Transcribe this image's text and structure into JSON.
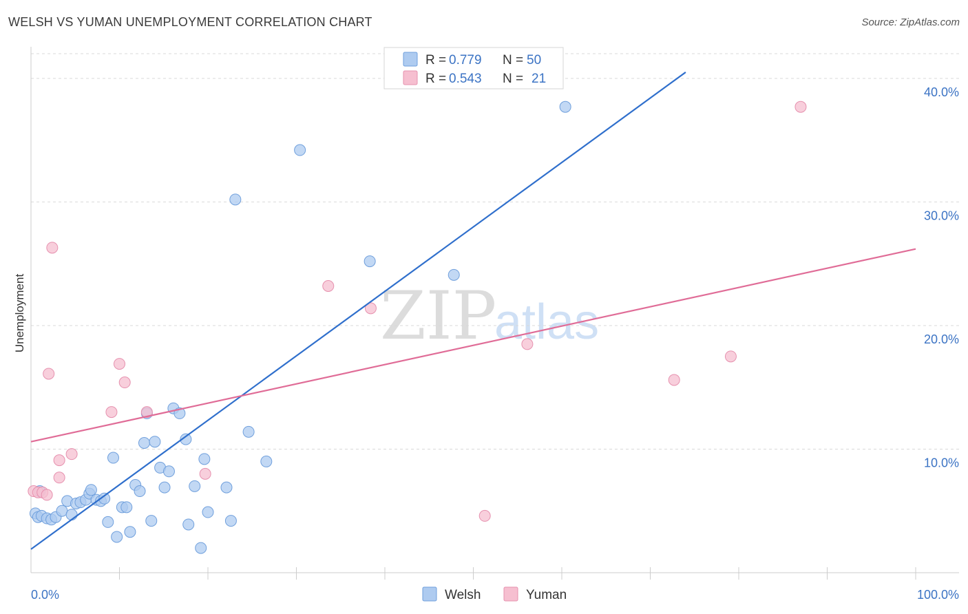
{
  "header": {
    "title": "WELSH VS YUMAN UNEMPLOYMENT CORRELATION CHART",
    "source": "Source: ZipAtlas.com"
  },
  "watermark": {
    "zip": "ZIP",
    "atlas": "atlas"
  },
  "legend_top": {
    "entries": [
      {
        "r_label": "R = ",
        "r_value": "0.779",
        "n_label": "N = ",
        "n_value": "50",
        "color": "#aecbf0"
      },
      {
        "r_label": "R = ",
        "r_value": "0.543",
        "n_label": "N = ",
        "n_value": "21",
        "color": "#f6bfd0"
      }
    ]
  },
  "legend_bottom": {
    "items": [
      "Welsh",
      "Yuman"
    ]
  },
  "colors": {
    "welsh_fill": "#aecbf0",
    "welsh_stroke": "#6f9fdc",
    "welsh_line": "#2f6fcc",
    "yuman_fill": "#f6bfd0",
    "yuman_stroke": "#e690ae",
    "yuman_line": "#e06c97",
    "grid": "#d9d9d9",
    "axis_label": "#3b73c4"
  },
  "chart_data": {
    "type": "scatter",
    "title": "WELSH VS YUMAN UNEMPLOYMENT CORRELATION CHART",
    "xlabel": "",
    "ylabel": "Unemployment",
    "xlim": [
      0,
      100
    ],
    "ylim": [
      0,
      42
    ],
    "x_tick_labels": [
      "0.0%",
      "100.0%"
    ],
    "y_ticks": [
      10,
      20,
      30,
      40
    ],
    "y_tick_labels": [
      "10.0%",
      "20.0%",
      "30.0%",
      "40.0%"
    ],
    "series": [
      {
        "name": "Welsh",
        "r": 0.779,
        "n": 50,
        "trend": {
          "x": [
            0,
            74
          ],
          "y": [
            1.9,
            40.5
          ]
        },
        "points": [
          [
            0.5,
            4.8
          ],
          [
            0.8,
            4.5
          ],
          [
            1.2,
            4.6
          ],
          [
            1.8,
            4.4
          ],
          [
            2.3,
            4.3
          ],
          [
            2.8,
            4.5
          ],
          [
            3.5,
            5.0
          ],
          [
            4.1,
            5.8
          ],
          [
            4.6,
            4.7
          ],
          [
            5.1,
            5.6
          ],
          [
            5.6,
            5.7
          ],
          [
            6.2,
            5.9
          ],
          [
            6.6,
            6.4
          ],
          [
            6.8,
            6.7
          ],
          [
            7.4,
            5.9
          ],
          [
            7.9,
            5.8
          ],
          [
            8.3,
            6.0
          ],
          [
            8.7,
            4.1
          ],
          [
            9.3,
            9.3
          ],
          [
            9.7,
            2.9
          ],
          [
            10.3,
            5.3
          ],
          [
            10.8,
            5.3
          ],
          [
            11.2,
            3.3
          ],
          [
            11.8,
            7.1
          ],
          [
            12.3,
            6.6
          ],
          [
            12.8,
            10.5
          ],
          [
            13.1,
            12.9
          ],
          [
            13.6,
            4.2
          ],
          [
            14.0,
            10.6
          ],
          [
            14.6,
            8.5
          ],
          [
            15.1,
            6.9
          ],
          [
            15.6,
            8.2
          ],
          [
            16.1,
            13.3
          ],
          [
            16.8,
            12.9
          ],
          [
            17.5,
            10.8
          ],
          [
            17.8,
            3.9
          ],
          [
            18.5,
            7.0
          ],
          [
            19.2,
            2.0
          ],
          [
            19.6,
            9.2
          ],
          [
            20.0,
            4.9
          ],
          [
            22.1,
            6.9
          ],
          [
            22.6,
            4.2
          ],
          [
            23.1,
            30.2
          ],
          [
            24.6,
            11.4
          ],
          [
            26.6,
            9.0
          ],
          [
            30.4,
            34.2
          ],
          [
            38.3,
            25.2
          ],
          [
            47.8,
            24.1
          ],
          [
            60.4,
            37.7
          ],
          [
            1.0,
            6.6
          ]
        ]
      },
      {
        "name": "Yuman",
        "r": 0.543,
        "n": 21,
        "trend": {
          "x": [
            0,
            100
          ],
          "y": [
            10.6,
            26.2
          ]
        },
        "points": [
          [
            0.3,
            6.6
          ],
          [
            0.8,
            6.5
          ],
          [
            1.3,
            6.5
          ],
          [
            1.8,
            6.3
          ],
          [
            2.0,
            16.1
          ],
          [
            2.4,
            26.3
          ],
          [
            3.2,
            9.1
          ],
          [
            3.2,
            7.7
          ],
          [
            4.6,
            9.6
          ],
          [
            9.1,
            13.0
          ],
          [
            10.0,
            16.9
          ],
          [
            10.6,
            15.4
          ],
          [
            13.1,
            13.0
          ],
          [
            19.7,
            8.0
          ],
          [
            33.6,
            23.2
          ],
          [
            38.4,
            21.4
          ],
          [
            51.3,
            4.6
          ],
          [
            56.1,
            18.5
          ],
          [
            72.7,
            15.6
          ],
          [
            79.1,
            17.5
          ],
          [
            87.0,
            37.7
          ]
        ]
      }
    ]
  }
}
